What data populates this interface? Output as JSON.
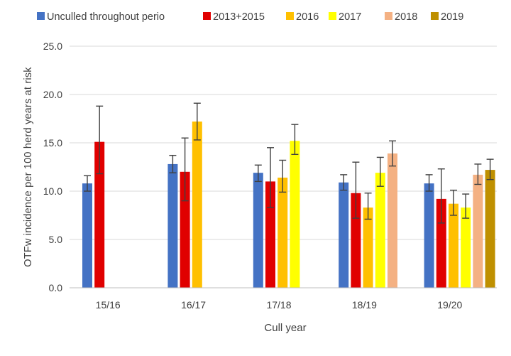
{
  "chart_data": {
    "type": "bar",
    "title": "",
    "xlabel": "Cull year",
    "ylabel": "OTFw incidence per 100 herd years at risk",
    "ylim": [
      0,
      25
    ],
    "yticks": [
      "0.0",
      "5.0",
      "10.0",
      "15.0",
      "20.0",
      "25.0"
    ],
    "grid": true,
    "legend_position": "top",
    "categories": [
      "15/16",
      "16/17",
      "17/18",
      "18/19",
      "19/20"
    ],
    "series": [
      {
        "name": "Unculled throughout perio",
        "color": "#4472C4",
        "values": [
          10.8,
          12.8,
          11.9,
          10.9,
          10.8
        ],
        "err_low": [
          10.0,
          11.9,
          11.0,
          10.1,
          10.0
        ],
        "err_high": [
          11.6,
          13.7,
          12.7,
          11.7,
          11.7
        ]
      },
      {
        "name": "2013+2015",
        "color": "#E00000",
        "values": [
          15.1,
          12.0,
          11.0,
          9.8,
          9.2
        ],
        "err_low": [
          11.8,
          9.0,
          8.3,
          7.2,
          6.7
        ],
        "err_high": [
          18.8,
          15.5,
          14.5,
          13.0,
          12.3
        ]
      },
      {
        "name": "2016",
        "color": "#FFC000",
        "values": [
          null,
          17.2,
          11.4,
          8.3,
          8.7
        ],
        "err_low": [
          null,
          15.3,
          9.9,
          7.1,
          7.5
        ],
        "err_high": [
          null,
          19.1,
          13.2,
          9.8,
          10.1
        ]
      },
      {
        "name": "2017",
        "color": "#FFFF00",
        "values": [
          null,
          null,
          15.2,
          11.9,
          8.3
        ],
        "err_low": [
          null,
          null,
          13.8,
          10.5,
          7.2
        ],
        "err_high": [
          null,
          null,
          16.9,
          13.5,
          9.7
        ]
      },
      {
        "name": "2018",
        "color": "#F4B183",
        "values": [
          null,
          null,
          null,
          13.9,
          11.7
        ],
        "err_low": [
          null,
          null,
          null,
          12.6,
          10.7
        ],
        "err_high": [
          null,
          null,
          null,
          15.2,
          12.8
        ]
      },
      {
        "name": "2019",
        "color": "#BF9000",
        "values": [
          null,
          null,
          null,
          null,
          12.2
        ],
        "err_low": [
          null,
          null,
          null,
          null,
          11.2
        ],
        "err_high": [
          null,
          null,
          null,
          null,
          13.3
        ]
      }
    ]
  }
}
